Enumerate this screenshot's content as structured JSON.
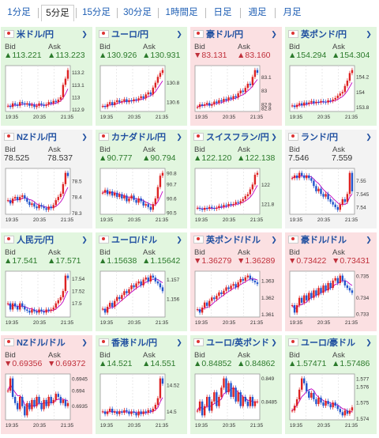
{
  "tabs": [
    {
      "label": "1分足",
      "active": false
    },
    {
      "label": "5分足",
      "active": true
    },
    {
      "label": "15分足",
      "active": false
    },
    {
      "label": "30分足",
      "active": false
    },
    {
      "label": "1時間足",
      "active": false
    },
    {
      "label": "日足",
      "active": false
    },
    {
      "label": "週足",
      "active": false
    },
    {
      "label": "月足",
      "active": false
    }
  ],
  "labels": {
    "bid": "Bid",
    "ask": "Ask"
  },
  "colors": {
    "up": "#e2f6df",
    "down": "#fbe0e2",
    "flat": "#f3f3f3",
    "candle_up": "#d22",
    "candle_down": "#2255cc",
    "ma": "#c000c0"
  },
  "pairs": [
    {
      "title": "米ドル/円",
      "trend": "up",
      "bid": "▲113.221",
      "ask": "▲113.223",
      "x_ticks": [
        "19:35",
        "20:35",
        "21:35"
      ],
      "y_ticks": [
        "113.2",
        "113.1",
        "113",
        "112.9"
      ],
      "series": [
        112.93,
        112.92,
        112.95,
        112.94,
        112.93,
        112.96,
        112.95,
        112.94,
        112.95,
        112.93,
        112.94,
        112.92,
        112.93,
        112.95,
        112.94,
        112.93,
        112.94,
        112.96,
        112.95,
        112.97,
        112.96,
        112.98,
        113.0,
        113.1,
        113.15,
        113.22
      ]
    },
    {
      "title": "ユーロ/円",
      "trend": "up",
      "bid": "▲130.926",
      "ask": "▲130.931",
      "x_ticks": [
        "19:35",
        "20:35",
        "21:35"
      ],
      "y_ticks": [
        "130.8",
        "130.6"
      ],
      "series": [
        130.56,
        130.55,
        130.58,
        130.6,
        130.57,
        130.6,
        130.62,
        130.6,
        130.61,
        130.63,
        130.6,
        130.62,
        130.61,
        130.63,
        130.62,
        130.64,
        130.66,
        130.64,
        130.68,
        130.7,
        130.68,
        130.75,
        130.8,
        130.86,
        130.9,
        130.93
      ]
    },
    {
      "title": "豪ドル/円",
      "trend": "down",
      "bid": "▼83.131",
      "ask": "▲83.160",
      "x_ticks": [
        "19:35",
        "20:35",
        "21:35"
      ],
      "y_ticks": [
        "83.1",
        "83",
        "82.9",
        "82.8"
      ],
      "series": [
        82.88,
        82.9,
        82.89,
        82.9,
        82.91,
        82.89,
        82.9,
        82.92,
        82.91,
        82.93,
        82.92,
        82.94,
        82.93,
        82.95,
        82.94,
        82.96,
        82.95,
        82.98,
        83.0,
        82.99,
        83.02,
        83.05,
        83.04,
        83.1,
        83.15,
        83.13
      ]
    },
    {
      "title": "英ポンド/円",
      "trend": "up",
      "bid": "▲154.294",
      "ask": "▲154.304",
      "x_ticks": [
        "19:35",
        "20:35",
        "21:35"
      ],
      "y_ticks": [
        "154.2",
        "154",
        "153.8"
      ],
      "series": [
        153.82,
        153.8,
        153.83,
        153.85,
        153.82,
        153.86,
        153.84,
        153.86,
        153.88,
        153.85,
        153.87,
        153.86,
        153.88,
        153.87,
        153.86,
        153.89,
        153.88,
        153.9,
        153.92,
        153.95,
        153.98,
        154.0,
        154.08,
        154.15,
        154.25,
        154.29
      ]
    },
    {
      "title": "NZドル/円",
      "trend": "flat",
      "bid": "78.525",
      "ask": "78.537",
      "x_ticks": [
        "19:35",
        "20:35",
        "21:35"
      ],
      "y_ticks": [
        "78.5",
        "78.4",
        "78.3"
      ],
      "series": [
        78.38,
        78.36,
        78.39,
        78.4,
        78.38,
        78.4,
        78.41,
        78.39,
        78.37,
        78.35,
        78.36,
        78.34,
        78.33,
        78.35,
        78.34,
        78.33,
        78.32,
        78.34,
        78.33,
        78.35,
        78.38,
        78.4,
        78.42,
        78.48,
        78.55,
        78.53
      ]
    },
    {
      "title": "カナダドル/円",
      "trend": "up",
      "bid": "▲90.777",
      "ask": "▲90.794",
      "x_ticks": [
        "19:35",
        "20:35",
        "21:35"
      ],
      "y_ticks": [
        "90.8",
        "90.7",
        "90.6",
        "90.5"
      ],
      "series": [
        90.64,
        90.66,
        90.63,
        90.65,
        90.62,
        90.64,
        90.61,
        90.63,
        90.6,
        90.62,
        90.58,
        90.6,
        90.62,
        90.59,
        90.57,
        90.6,
        90.58,
        90.55,
        90.56,
        90.54,
        90.52,
        90.56,
        90.6,
        90.68,
        90.76,
        90.78
      ]
    },
    {
      "title": "スイスフラン/円",
      "trend": "up",
      "bid": "▲122.120",
      "ask": "▲122.138",
      "x_ticks": [
        "19:35",
        "20:35",
        "21:35"
      ],
      "y_ticks": [
        "122",
        "121.8"
      ],
      "series": [
        121.76,
        121.75,
        121.74,
        121.76,
        121.75,
        121.77,
        121.76,
        121.75,
        121.76,
        121.78,
        121.77,
        121.79,
        121.78,
        121.8,
        121.79,
        121.8,
        121.82,
        121.81,
        121.83,
        121.85,
        121.88,
        121.9,
        121.95,
        122.0,
        122.1,
        122.12
      ]
    },
    {
      "title": "ランド/円",
      "trend": "flat",
      "bid": "7.546",
      "ask": "7.559",
      "x_ticks": [
        "19:35",
        "20:35",
        "21:35"
      ],
      "y_ticks": [
        "7.55",
        "7.545",
        "7.54"
      ],
      "series": [
        7.551,
        7.552,
        7.551,
        7.553,
        7.552,
        7.551,
        7.552,
        7.551,
        7.55,
        7.548,
        7.546,
        7.547,
        7.545,
        7.544,
        7.545,
        7.543,
        7.542,
        7.541,
        7.54,
        7.539,
        7.541,
        7.543,
        7.542,
        7.545,
        7.553,
        7.546
      ]
    },
    {
      "title": "人民元/円",
      "trend": "up",
      "bid": "▲17.541",
      "ask": "▲17.571",
      "x_ticks": [
        "19:35",
        "20:35",
        "21:35"
      ],
      "y_ticks": [
        "17.54",
        "17.52",
        "17.5"
      ],
      "series": [
        17.5,
        17.49,
        17.5,
        17.495,
        17.49,
        17.5,
        17.495,
        17.49,
        17.488,
        17.485,
        17.49,
        17.487,
        17.485,
        17.49,
        17.487,
        17.485,
        17.49,
        17.488,
        17.49,
        17.493,
        17.5,
        17.505,
        17.51,
        17.52,
        17.545,
        17.541
      ]
    },
    {
      "title": "ユーロ/ドル",
      "trend": "up",
      "bid": "▲1.15638",
      "ask": "▲1.15642",
      "x_ticks": [
        "19:35",
        "20:35",
        "21:35"
      ],
      "y_ticks": [
        "1.157",
        "1.156"
      ],
      "series": [
        1.1555,
        1.1553,
        1.1556,
        1.1558,
        1.1556,
        1.1559,
        1.1561,
        1.156,
        1.1562,
        1.1564,
        1.1563,
        1.1565,
        1.1567,
        1.1566,
        1.1568,
        1.1569,
        1.1567,
        1.157,
        1.1571,
        1.1569,
        1.1572,
        1.1571,
        1.1569,
        1.1568,
        1.1566,
        1.1564
      ]
    },
    {
      "title": "英ポンド/ドル",
      "trend": "down",
      "bid": "▼1.36279",
      "ask": "▼1.36289",
      "x_ticks": [
        "19:35",
        "20:35",
        "21:35"
      ],
      "y_ticks": [
        "1.363",
        "1.362",
        "1.361"
      ],
      "series": [
        1.3613,
        1.3611,
        1.3614,
        1.3617,
        1.3615,
        1.3618,
        1.362,
        1.3619,
        1.3621,
        1.3623,
        1.3622,
        1.3624,
        1.3626,
        1.3625,
        1.3627,
        1.3628,
        1.3626,
        1.3629,
        1.3631,
        1.363,
        1.3632,
        1.3633,
        1.3631,
        1.363,
        1.3629,
        1.3628
      ]
    },
    {
      "title": "豪ドル/ドル",
      "trend": "down",
      "bid": "▼0.73422",
      "ask": "▼0.73431",
      "x_ticks": [
        "19:35",
        "20:35",
        "21:35"
      ],
      "y_ticks": [
        "0.735",
        "0.734",
        "0.733"
      ],
      "series": [
        0.7337,
        0.7334,
        0.7337,
        0.734,
        0.7338,
        0.7341,
        0.7339,
        0.7342,
        0.734,
        0.7343,
        0.7341,
        0.7344,
        0.7342,
        0.7345,
        0.7343,
        0.7346,
        0.7344,
        0.7347,
        0.7348,
        0.7346,
        0.7349,
        0.7347,
        0.7345,
        0.7344,
        0.7343,
        0.7342
      ]
    },
    {
      "title": "NZドル/ドル",
      "trend": "down",
      "bid": "▼0.69356",
      "ask": "▼0.69372",
      "x_ticks": [
        "19:35",
        "20:35",
        "21:35"
      ],
      "y_ticks": [
        "0.6945",
        "0.694",
        "0.6935"
      ],
      "series": [
        0.694,
        0.6944,
        0.6938,
        0.6936,
        0.6934,
        0.6938,
        0.6935,
        0.6932,
        0.6936,
        0.6934,
        0.6937,
        0.6935,
        0.6938,
        0.6936,
        0.6934,
        0.6937,
        0.6935,
        0.6938,
        0.6936,
        0.6937,
        0.6939,
        0.6938,
        0.6936,
        0.6937,
        0.6935,
        0.6936
      ]
    },
    {
      "title": "香港ドル/円",
      "trend": "up",
      "bid": "▲14.521",
      "ask": "▲14.551",
      "x_ticks": [
        "19:35",
        "20:35",
        "21:35"
      ],
      "y_ticks": [
        "14.52",
        "14.5"
      ],
      "series": [
        14.5,
        14.498,
        14.5,
        14.502,
        14.499,
        14.5,
        14.498,
        14.5,
        14.499,
        14.501,
        14.5,
        14.498,
        14.5,
        14.499,
        14.497,
        14.5,
        14.498,
        14.5,
        14.499,
        14.501,
        14.5,
        14.502,
        14.505,
        14.51,
        14.525,
        14.521
      ]
    },
    {
      "title": "ユーロ/英ポンド",
      "trend": "up",
      "bid": "▲0.84852",
      "ask": "▲0.84862",
      "x_ticks": [
        "19:35",
        "20:35",
        "21:35"
      ],
      "y_ticks": [
        "0.849",
        "0.8485"
      ],
      "series": [
        0.8483,
        0.8485,
        0.8482,
        0.8484,
        0.8486,
        0.8483,
        0.8485,
        0.8487,
        0.8484,
        0.8486,
        0.8488,
        0.849,
        0.8487,
        0.8489,
        0.8486,
        0.8488,
        0.8485,
        0.8487,
        0.8484,
        0.8486,
        0.8485,
        0.8484,
        0.8486,
        0.8484,
        0.8485,
        0.8485
      ]
    },
    {
      "title": "ユーロ/豪ドル",
      "trend": "up",
      "bid": "▲1.57471",
      "ask": "▲1.57486",
      "x_ticks": [
        "19:35",
        "20:35",
        "21:35"
      ],
      "y_ticks": [
        "1.577",
        "1.576",
        "1.575",
        "1.574"
      ],
      "series": [
        1.5745,
        1.5748,
        1.5752,
        1.5758,
        1.5765,
        1.5762,
        1.5757,
        1.5753,
        1.5756,
        1.5752,
        1.5749,
        1.5753,
        1.575,
        1.5748,
        1.5751,
        1.5749,
        1.5747,
        1.575,
        1.5748,
        1.5746,
        1.5744,
        1.5742,
        1.5745,
        1.5743,
        1.5745,
        1.5747
      ]
    }
  ]
}
